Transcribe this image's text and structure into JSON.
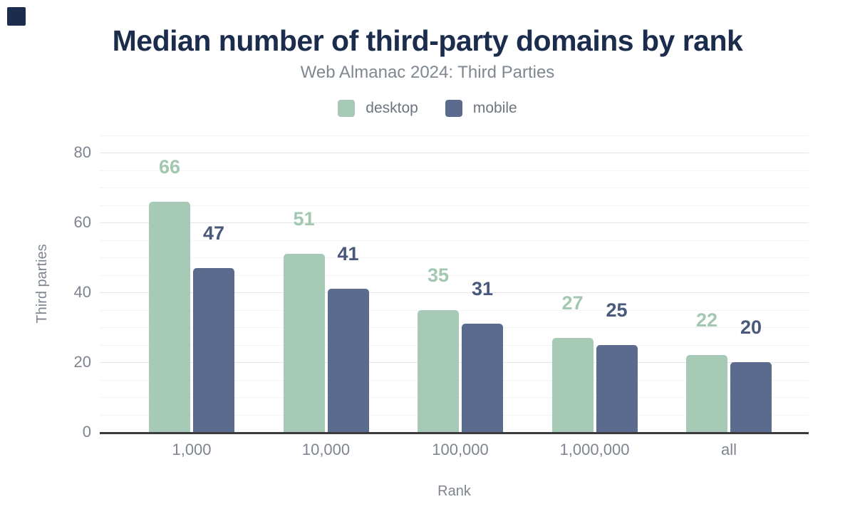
{
  "chart_data": {
    "type": "bar",
    "title": "Median number of third-party domains by rank",
    "subtitle": "Web Almanac 2024: Third Parties",
    "categories": [
      "1,000",
      "10,000",
      "100,000",
      "1,000,000",
      "all"
    ],
    "series": [
      {
        "name": "desktop",
        "values": [
          66,
          51,
          35,
          27,
          22
        ],
        "bar_color": "#a7cab6",
        "label_color": "#a2c8b2"
      },
      {
        "name": "mobile",
        "values": [
          47,
          41,
          31,
          25,
          20
        ],
        "bar_color": "#5b6b8e",
        "label_color": "#49597c"
      }
    ],
    "xlabel": "Rank",
    "ylabel": "Third parties",
    "ylim": [
      0,
      85
    ],
    "yticks": [
      0,
      20,
      40,
      60,
      80
    ],
    "minor_grid_step": 5,
    "grid": true,
    "legend_position": "top",
    "data_labels": true,
    "colors": {
      "title": "#1b2c4d",
      "subtitle": "#7f8790",
      "axis_text": "#7e8490",
      "legend_text": "#6e7580",
      "grid_major": "#e5e4e8",
      "grid_minor": "#f4f3f6",
      "baseline": "#3a393c",
      "corner_mark": "#1b2c4d",
      "background": "#ffffff"
    }
  }
}
